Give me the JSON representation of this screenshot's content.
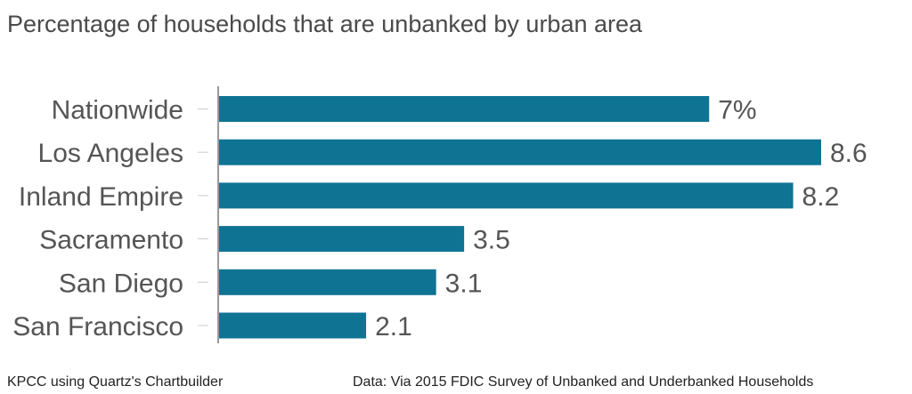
{
  "chart_data": {
    "type": "bar",
    "orientation": "horizontal",
    "title": "Percentage of households that are unbanked by urban area",
    "categories": [
      "Nationwide",
      "Los Angeles",
      "Inland Empire",
      "Sacramento",
      "San Diego",
      "San Francisco"
    ],
    "values": [
      7,
      8.6,
      8.2,
      3.5,
      3.1,
      2.1
    ],
    "value_labels": [
      "7%",
      "8.6",
      "8.2",
      "3.5",
      "3.1",
      "2.1"
    ],
    "xlim": [
      0,
      8.6
    ],
    "grid": false,
    "bar_color": "#0f7394"
  },
  "footer": {
    "credit": "KPCC using Quartz's Chartbuilder",
    "source": "Data: Via 2015 FDIC Survey of Unbanked and Underbanked Households"
  }
}
